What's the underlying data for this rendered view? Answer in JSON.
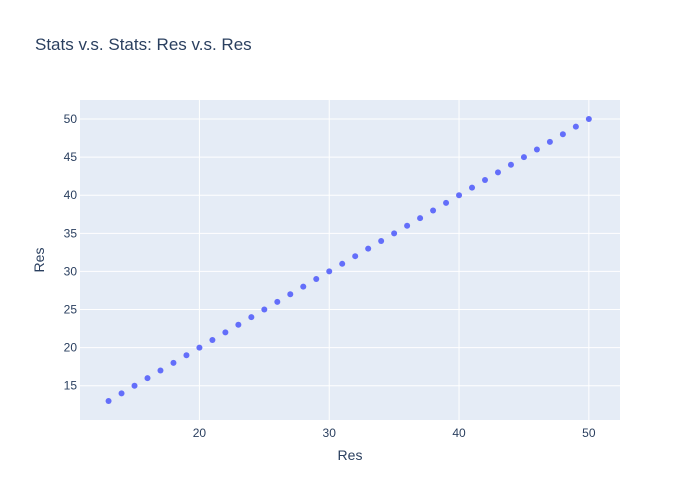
{
  "chart_data": {
    "type": "scatter",
    "title": "Stats v.s. Stats: Res v.s. Res",
    "xlabel": "Res",
    "ylabel": "Res",
    "xlim": [
      10.8,
      52.4
    ],
    "ylim": [
      10.5,
      52.5
    ],
    "x_ticks": [
      20,
      30,
      40,
      50
    ],
    "y_ticks": [
      15,
      20,
      25,
      30,
      35,
      40,
      45,
      50
    ],
    "grid": true,
    "legend": "none",
    "series": [
      {
        "x": [
          13,
          14,
          15,
          16,
          17,
          18,
          19,
          20,
          21,
          22,
          23,
          24,
          25,
          26,
          27,
          28,
          29,
          30,
          31,
          32,
          33,
          34,
          35,
          36,
          37,
          38,
          39,
          40,
          41,
          42,
          43,
          44,
          45,
          46,
          47,
          48,
          49,
          50
        ],
        "y": [
          13,
          14,
          15,
          16,
          17,
          18,
          19,
          20,
          21,
          22,
          23,
          24,
          25,
          26,
          27,
          28,
          29,
          30,
          31,
          32,
          33,
          34,
          35,
          36,
          37,
          38,
          39,
          40,
          41,
          42,
          43,
          44,
          45,
          46,
          47,
          48,
          49,
          50
        ]
      }
    ],
    "colors": {
      "background": "#e5ecf6",
      "grid": "#ffffff",
      "marker": "#636efa",
      "text": "#2a3f5f"
    }
  }
}
